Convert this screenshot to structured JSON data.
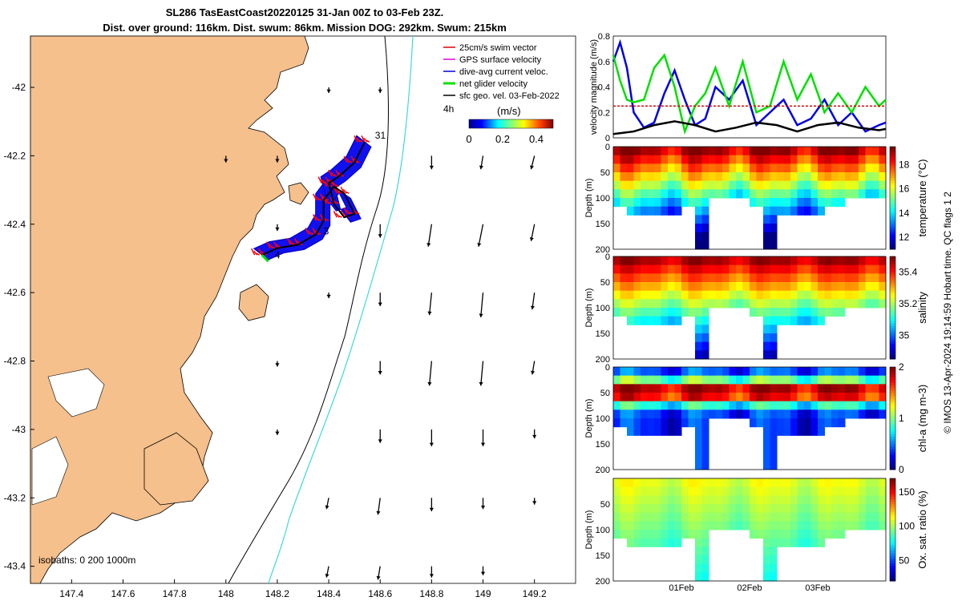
{
  "figure": {
    "title": "SL286 TasEastCoast20220125 31-Jan 00Z to 03-Feb 23Z.",
    "subtitle": "Dist. over ground: 116km. Dist. swum: 86km. Mission DOG: 292km. Swum: 215km",
    "side_note": "© IMOS 13-Apr-2024 19:14:59 Hobart time. QC flags 1  2"
  },
  "chart_data": [
    {
      "type": "map",
      "x_ticks": [
        "147.4",
        "147.6",
        "147.8",
        "148",
        "148.2",
        "148.4",
        "148.6",
        "148.8",
        "149",
        "149.2"
      ],
      "x_values": [
        147.4,
        147.6,
        147.8,
        148.0,
        148.2,
        148.4,
        148.6,
        148.8,
        149.0,
        149.2
      ],
      "y_ticks": [
        "-42",
        "-42.2",
        "-42.4",
        "-42.6",
        "-42.8",
        "-43",
        "-43.2",
        "-43.4"
      ],
      "y_values": [
        -42.0,
        -42.2,
        -42.4,
        -42.6,
        -42.8,
        -43.0,
        -43.2,
        -43.4
      ],
      "xlim": [
        147.24,
        149.36
      ],
      "ylim": [
        -43.45,
        -41.85
      ],
      "legend": [
        {
          "label": "25cm/s swim vector",
          "color": "#e00000"
        },
        {
          "label": "GPS surface velocity",
          "color": "#e000e0"
        },
        {
          "label": "dive-avg current veloc.",
          "color": "#0000e0"
        },
        {
          "label": "net glider velocity",
          "color": "#00e000"
        },
        {
          "label": "sfc geo. vel. 03-Feb-2022",
          "color": "#000000"
        }
      ],
      "legend_note": "4h",
      "colorbar": {
        "label": "(m/s)",
        "ticks": [
          "0",
          "0.2",
          "0.4"
        ],
        "range": [
          0,
          0.5
        ]
      },
      "day_labels": [
        {
          "text": "31",
          "lon": 148.58,
          "lat": -42.15
        },
        {
          "text": "3",
          "lon": 148.38,
          "lat": -42.43
        },
        {
          "text": "4",
          "lon": 148.19,
          "lat": -42.5
        }
      ],
      "isobaths_note": "isobaths: 0   200  1000m",
      "track": [
        [
          148.54,
          -42.16
        ],
        [
          148.5,
          -42.22
        ],
        [
          148.44,
          -42.26
        ],
        [
          148.4,
          -42.28
        ],
        [
          148.42,
          -42.34
        ],
        [
          148.46,
          -42.38
        ],
        [
          148.5,
          -42.37
        ],
        [
          148.46,
          -42.31
        ],
        [
          148.42,
          -42.29
        ],
        [
          148.38,
          -42.33
        ],
        [
          148.38,
          -42.39
        ],
        [
          148.35,
          -42.43
        ],
        [
          148.28,
          -42.46
        ],
        [
          148.2,
          -42.47
        ],
        [
          148.14,
          -42.49
        ]
      ],
      "vectors": [
        {
          "lon": 148.4,
          "lat": -42.0,
          "u": 0.0,
          "v": -0.05
        },
        {
          "lon": 148.6,
          "lat": -42.0,
          "u": 0.0,
          "v": -0.05
        },
        {
          "lon": 148.0,
          "lat": -42.2,
          "u": 0.0,
          "v": -0.06
        },
        {
          "lon": 148.2,
          "lat": -42.2,
          "u": 0.0,
          "v": -0.06
        },
        {
          "lon": 148.8,
          "lat": -42.2,
          "u": 0.0,
          "v": -0.12
        },
        {
          "lon": 149.0,
          "lat": -42.2,
          "u": -0.02,
          "v": -0.12
        },
        {
          "lon": 149.2,
          "lat": -42.2,
          "u": -0.03,
          "v": -0.12
        },
        {
          "lon": 148.2,
          "lat": -42.4,
          "u": 0.0,
          "v": -0.06
        },
        {
          "lon": 148.6,
          "lat": -42.4,
          "u": 0.0,
          "v": -0.12
        },
        {
          "lon": 148.8,
          "lat": -42.4,
          "u": -0.03,
          "v": -0.2
        },
        {
          "lon": 149.0,
          "lat": -42.4,
          "u": -0.04,
          "v": -0.2
        },
        {
          "lon": 149.2,
          "lat": -42.4,
          "u": -0.03,
          "v": -0.15
        },
        {
          "lon": 148.4,
          "lat": -42.6,
          "u": 0.0,
          "v": -0.05
        },
        {
          "lon": 148.6,
          "lat": -42.6,
          "u": 0.0,
          "v": -0.12
        },
        {
          "lon": 148.8,
          "lat": -42.6,
          "u": -0.02,
          "v": -0.2
        },
        {
          "lon": 149.0,
          "lat": -42.6,
          "u": -0.02,
          "v": -0.22
        },
        {
          "lon": 149.2,
          "lat": -42.6,
          "u": -0.02,
          "v": -0.15
        },
        {
          "lon": 148.2,
          "lat": -42.8,
          "u": 0.0,
          "v": -0.05
        },
        {
          "lon": 148.6,
          "lat": -42.8,
          "u": 0.0,
          "v": -0.12
        },
        {
          "lon": 148.8,
          "lat": -42.8,
          "u": -0.02,
          "v": -0.22
        },
        {
          "lon": 149.0,
          "lat": -42.8,
          "u": -0.02,
          "v": -0.22
        },
        {
          "lon": 149.2,
          "lat": -42.8,
          "u": -0.02,
          "v": -0.12
        },
        {
          "lon": 148.2,
          "lat": -43.0,
          "u": 0.0,
          "v": -0.05
        },
        {
          "lon": 148.6,
          "lat": -43.0,
          "u": 0.0,
          "v": -0.12
        },
        {
          "lon": 148.8,
          "lat": -43.0,
          "u": 0.0,
          "v": -0.15
        },
        {
          "lon": 149.0,
          "lat": -43.0,
          "u": 0.0,
          "v": -0.15
        },
        {
          "lon": 149.2,
          "lat": -43.0,
          "u": 0.0,
          "v": -0.08
        },
        {
          "lon": 148.4,
          "lat": -43.2,
          "u": -0.02,
          "v": -0.1
        },
        {
          "lon": 148.6,
          "lat": -43.2,
          "u": -0.02,
          "v": -0.15
        },
        {
          "lon": 148.8,
          "lat": -43.2,
          "u": 0.0,
          "v": -0.12
        },
        {
          "lon": 149.0,
          "lat": -43.2,
          "u": 0.0,
          "v": -0.1
        },
        {
          "lon": 149.2,
          "lat": -43.2,
          "u": 0.0,
          "v": -0.06
        },
        {
          "lon": 148.4,
          "lat": -43.4,
          "u": -0.02,
          "v": -0.1
        },
        {
          "lon": 148.6,
          "lat": -43.4,
          "u": -0.02,
          "v": -0.12
        },
        {
          "lon": 148.8,
          "lat": -43.4,
          "u": 0.0,
          "v": -0.1
        },
        {
          "lon": 149.0,
          "lat": -43.4,
          "u": 0.0,
          "v": -0.08
        }
      ]
    },
    {
      "type": "line",
      "ylabel": "velocity magnitude (m/s)",
      "y_ticks": [
        "0",
        "0.2",
        "0.4",
        "0.6",
        "0.8"
      ],
      "ylim": [
        0,
        0.8
      ],
      "xlim": [
        0,
        4
      ],
      "series": [
        {
          "name": "dive-avg current veloc.",
          "color": "#0000e0",
          "x": [
            0,
            0.1,
            0.2,
            0.3,
            0.45,
            0.6,
            0.75,
            0.9,
            1.05,
            1.2,
            1.35,
            1.5,
            1.7,
            1.9,
            2.1,
            2.3,
            2.5,
            2.7,
            2.9,
            3.1,
            3.3,
            3.5,
            3.7,
            3.9,
            4.0
          ],
          "y": [
            0.6,
            0.75,
            0.55,
            0.2,
            0.08,
            0.12,
            0.35,
            0.53,
            0.3,
            0.1,
            0.15,
            0.4,
            0.3,
            0.45,
            0.1,
            0.2,
            0.3,
            0.1,
            0.15,
            0.3,
            0.1,
            0.2,
            0.05,
            0.1,
            0.12
          ]
        },
        {
          "name": "net glider velocity",
          "color": "#00e000",
          "x": [
            0,
            0.1,
            0.2,
            0.3,
            0.45,
            0.6,
            0.75,
            0.9,
            1.05,
            1.2,
            1.35,
            1.5,
            1.7,
            1.9,
            2.1,
            2.3,
            2.5,
            2.7,
            2.9,
            3.1,
            3.3,
            3.5,
            3.7,
            3.9,
            4.0
          ],
          "y": [
            0.65,
            0.45,
            0.3,
            0.28,
            0.3,
            0.55,
            0.65,
            0.4,
            0.05,
            0.25,
            0.35,
            0.55,
            0.25,
            0.6,
            0.2,
            0.25,
            0.6,
            0.3,
            0.5,
            0.2,
            0.35,
            0.2,
            0.4,
            0.25,
            0.3
          ]
        },
        {
          "name": "25cm/s swim vector",
          "color": "#e00000",
          "x": [
            0,
            4
          ],
          "y": [
            0.25,
            0.25
          ],
          "dashed": true
        },
        {
          "name": "sfc geo. vel.",
          "color": "#000000",
          "x": [
            0,
            0.3,
            0.6,
            0.9,
            1.2,
            1.5,
            1.8,
            2.1,
            2.4,
            2.7,
            3.0,
            3.3,
            3.6,
            3.9,
            4.0
          ],
          "y": [
            0.03,
            0.05,
            0.1,
            0.13,
            0.1,
            0.05,
            0.08,
            0.12,
            0.1,
            0.05,
            0.1,
            0.12,
            0.08,
            0.06,
            0.07
          ]
        }
      ]
    },
    {
      "type": "heatmap",
      "variable": "temperature (°C)",
      "ylabel": "Depth (m)",
      "y_ticks": [
        "0",
        "50",
        "100",
        "150",
        "200"
      ],
      "ylim": [
        0,
        200
      ],
      "colorbar_ticks": [
        "12",
        "14",
        "16",
        "18"
      ],
      "crange": [
        11,
        19.5
      ],
      "xlim": [
        0,
        4
      ]
    },
    {
      "type": "heatmap",
      "variable": "salinity",
      "ylabel": "Depth (m)",
      "y_ticks": [
        "0",
        "50",
        "100",
        "150",
        "200"
      ],
      "ylim": [
        0,
        200
      ],
      "colorbar_ticks": [
        "35",
        "35.2",
        "35.4"
      ],
      "crange": [
        34.85,
        35.5
      ],
      "xlim": [
        0,
        4
      ]
    },
    {
      "type": "heatmap",
      "variable": "chl-a (mg m-3)",
      "ylabel": "Depth (m)",
      "y_ticks": [
        "0",
        "50",
        "100",
        "150",
        "200"
      ],
      "ylim": [
        0,
        200
      ],
      "colorbar_ticks": [
        "0",
        "1",
        "2"
      ],
      "crange": [
        0,
        2
      ],
      "xlim": [
        0,
        4
      ]
    },
    {
      "type": "heatmap",
      "variable": "Ox. sat. ratio (%)",
      "ylabel": "Depth (m)",
      "y_ticks": [
        "50",
        "100",
        "150",
        "200"
      ],
      "ylim": [
        0,
        200
      ],
      "colorbar_ticks": [
        "50",
        "100",
        "150"
      ],
      "crange": [
        20,
        170
      ],
      "xlim": [
        0,
        4
      ],
      "x_ticks": [
        "01Feb",
        "02Feb",
        "03Feb"
      ],
      "x_values": [
        1,
        2,
        3
      ]
    }
  ]
}
